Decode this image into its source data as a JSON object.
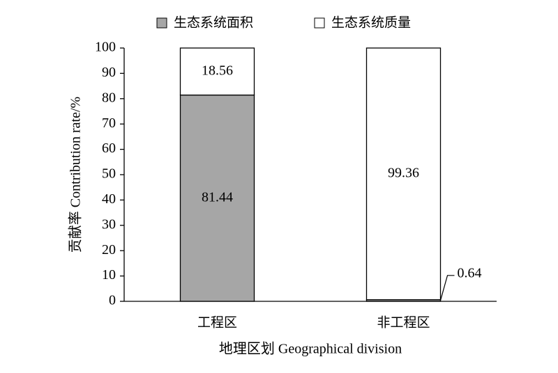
{
  "chart_data": {
    "type": "stacked-bar",
    "categories": [
      "工程区",
      "非工程区"
    ],
    "series": [
      {
        "name": "生态系统面积",
        "color": "#a6a6a6",
        "values": [
          81.44,
          0.64
        ]
      },
      {
        "name": "生态系统质量",
        "color": "#ffffff",
        "values": [
          18.56,
          99.36
        ]
      }
    ],
    "ylim": [
      0,
      100
    ],
    "yticks": [
      0,
      10,
      20,
      30,
      40,
      50,
      60,
      70,
      80,
      90,
      100
    ],
    "ylabel": "贡献率 Contribution rate/%",
    "xlabel": "地理区划 Geographical division",
    "legend": "top"
  }
}
